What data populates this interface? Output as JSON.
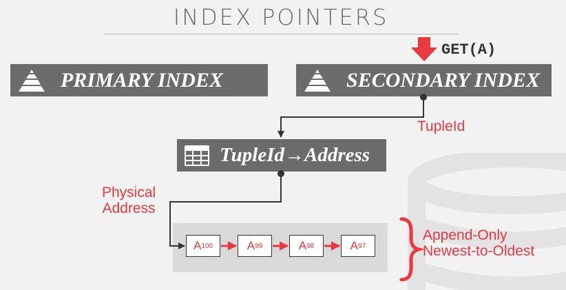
{
  "title": "INDEX POINTERS",
  "get_label": "GET(A)",
  "primary_index": {
    "label": "PRIMARY INDEX",
    "icon": "pyramid-icon"
  },
  "secondary_index": {
    "label": "SECONDARY INDEX",
    "icon": "pyramid-icon"
  },
  "mapping_table": {
    "label": "TupleId→Address",
    "icon": "table-icon"
  },
  "labels": {
    "tupleid": "TupleId",
    "physical_line1": "Physical",
    "physical_line2": "Address",
    "append_line1": "Append-Only",
    "append_line2": "Newest-to-Oldest"
  },
  "version_chain": [
    {
      "base": "A",
      "sub": "100"
    },
    {
      "base": "A",
      "sub": "99"
    },
    {
      "base": "A",
      "sub": "98"
    },
    {
      "base": "A",
      "sub": "97"
    }
  ],
  "colors": {
    "accent_red": "#e8393f",
    "box_gray": "#6b6b6b",
    "chain_bg": "#dadada",
    "title_gray": "#666666"
  }
}
